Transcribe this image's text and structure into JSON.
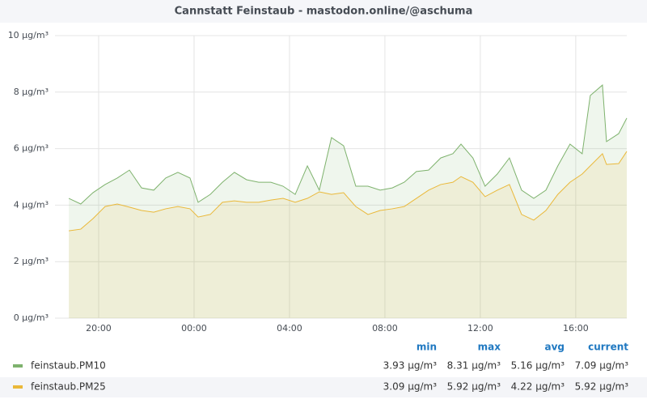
{
  "chart_data": {
    "type": "line",
    "title": "Cannstatt Feinstaub - mastodon.online/@aschuma",
    "x": [
      18.75,
      19.25,
      19.76,
      20.27,
      20.78,
      21.29,
      21.8,
      22.31,
      22.81,
      23.32,
      23.83,
      24.17,
      24.68,
      25.19,
      25.69,
      26.2,
      26.71,
      27.22,
      27.73,
      28.24,
      28.75,
      29.25,
      29.76,
      30.27,
      30.78,
      31.29,
      31.8,
      32.31,
      32.81,
      33.32,
      33.83,
      34.34,
      34.85,
      35.19,
      35.69,
      36.2,
      36.71,
      37.22,
      37.73,
      38.24,
      38.75,
      39.25,
      39.76,
      40.27,
      40.61,
      41.12,
      41.29,
      41.8,
      42.14
    ],
    "xlim": [
      18.17,
      42.14
    ],
    "xticks": [
      {
        "value": 20,
        "label": "20:00"
      },
      {
        "value": 24,
        "label": "00:00"
      },
      {
        "value": 28,
        "label": "04:00"
      },
      {
        "value": 32,
        "label": "08:00"
      },
      {
        "value": 36,
        "label": "12:00"
      },
      {
        "value": 40,
        "label": "16:00"
      }
    ],
    "ylim": [
      0,
      10
    ],
    "yticks": [
      {
        "value": 0,
        "label": "0 µg/m³"
      },
      {
        "value": 2,
        "label": "2 µg/m³"
      },
      {
        "value": 4,
        "label": "4 µg/m³"
      },
      {
        "value": 6,
        "label": "6 µg/m³"
      },
      {
        "value": 8,
        "label": "8 µg/m³"
      },
      {
        "value": 10,
        "label": "10 µg/m³"
      }
    ],
    "grid": true,
    "legend_columns": [
      "min",
      "max",
      "avg",
      "current"
    ],
    "series": [
      {
        "name": "feinstaub.PM10",
        "color": "#7eb26d",
        "values": [
          4.24,
          4.04,
          4.44,
          4.73,
          4.96,
          5.24,
          4.61,
          4.53,
          4.96,
          5.16,
          4.96,
          4.1,
          4.38,
          4.81,
          5.16,
          4.9,
          4.81,
          4.81,
          4.67,
          4.38,
          5.39,
          4.53,
          6.39,
          6.1,
          4.67,
          4.67,
          4.53,
          4.61,
          4.81,
          5.19,
          5.24,
          5.67,
          5.82,
          6.16,
          5.67,
          4.67,
          5.1,
          5.67,
          4.53,
          4.24,
          4.53,
          5.39,
          6.16,
          5.82,
          7.88,
          8.25,
          6.25,
          6.53,
          7.08
        ],
        "stats": [
          "3.93 µg/m³",
          "8.31 µg/m³",
          "5.16 µg/m³",
          "7.09 µg/m³"
        ]
      },
      {
        "name": "feinstaub.PM25",
        "color": "#eab839",
        "values": [
          3.09,
          3.15,
          3.52,
          3.95,
          4.04,
          3.93,
          3.81,
          3.75,
          3.87,
          3.95,
          3.87,
          3.58,
          3.67,
          4.1,
          4.15,
          4.1,
          4.1,
          4.18,
          4.24,
          4.1,
          4.24,
          4.47,
          4.38,
          4.44,
          3.95,
          3.67,
          3.81,
          3.87,
          3.95,
          4.24,
          4.53,
          4.73,
          4.81,
          5.01,
          4.81,
          4.3,
          4.53,
          4.73,
          3.67,
          3.47,
          3.81,
          4.38,
          4.81,
          5.1,
          5.39,
          5.82,
          5.44,
          5.47,
          5.9
        ],
        "stats": [
          "3.09 µg/m³",
          "5.92 µg/m³",
          "4.22 µg/m³",
          "5.92 µg/m³"
        ]
      }
    ]
  }
}
